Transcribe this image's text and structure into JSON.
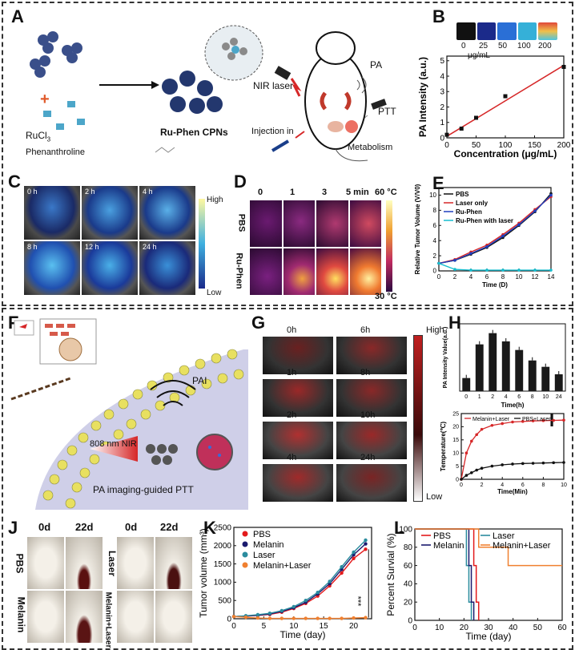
{
  "panels": {
    "a": {
      "letter": "A",
      "ru": "RuCl",
      "ru_sub": "3",
      "phen": "Phenanthroline",
      "cpn": "Ru-Phen CPNs",
      "nir": "NIR laser",
      "pa": "PA",
      "ptt": "PTT",
      "inj": "Injection in",
      "metab": "Metabolism"
    },
    "b": {
      "letter": "B",
      "conc_labels": [
        "0",
        "25",
        "50",
        "100",
        "200"
      ],
      "unit": "μg/mL"
    },
    "c": {
      "letter": "C",
      "times": [
        "0 h",
        "2 h",
        "4 h",
        "8 h",
        "12 h",
        "24 h"
      ],
      "high": "High",
      "low": "Low"
    },
    "d": {
      "letter": "D",
      "times": [
        "0",
        "1",
        "3",
        "5 min"
      ],
      "rows": [
        "PBS",
        "Ru-Phen"
      ],
      "tmax": "60 °C",
      "tmin": "30 °C"
    },
    "e": {
      "letter": "E"
    },
    "f": {
      "letter": "F",
      "pai": "PAI",
      "nir": "808 nm NIR",
      "caption": "PA imaging-guided PTT"
    },
    "g": {
      "letter": "G",
      "times": [
        "0h",
        "6h",
        "1h",
        "8h",
        "2h",
        "10h",
        "4h",
        "24h"
      ],
      "high": "High",
      "low": "Low"
    },
    "h": {
      "letter": "H"
    },
    "i": {
      "letter": "I"
    },
    "j": {
      "letter": "J",
      "days": [
        "0d",
        "22d",
        "0d",
        "22d"
      ],
      "rows_left": [
        "PBS",
        "Melanin"
      ],
      "rows_right": [
        "Laser",
        "Melanin+Laser"
      ]
    },
    "k": {
      "letter": "K",
      "stars": "***"
    },
    "l": {
      "letter": "L"
    }
  },
  "chart_data": [
    {
      "id": "B",
      "type": "scatter",
      "xlabel": "Concentration (μg/mL)",
      "ylabel": "PA Intensity (a.u.)",
      "x": [
        0,
        25,
        50,
        100,
        200
      ],
      "y": [
        0.2,
        0.6,
        1.3,
        2.7,
        4.6
      ],
      "fit": [
        [
          0,
          0.1
        ],
        [
          200,
          4.7
        ]
      ],
      "xticks": [
        0,
        50,
        100,
        150,
        200
      ],
      "yticks": [
        0,
        1,
        2,
        3,
        4,
        5
      ],
      "xlim": [
        0,
        200
      ],
      "ylim": [
        0,
        5.3
      ]
    },
    {
      "id": "E",
      "type": "line",
      "xlabel": "Time (D)",
      "ylabel": "Relative Tumor Volume (V/V0)",
      "x": [
        0,
        2,
        4,
        6,
        8,
        10,
        12,
        14
      ],
      "xticks": [
        0,
        2,
        4,
        6,
        8,
        10,
        12,
        14
      ],
      "yticks": [
        0,
        2,
        4,
        6,
        8,
        10
      ],
      "xlim": [
        0,
        14
      ],
      "ylim": [
        0,
        11
      ],
      "series": [
        {
          "name": "PBS",
          "color": "#111111",
          "values": [
            1,
            1.4,
            2.2,
            3.1,
            4.4,
            6.0,
            7.8,
            10.2
          ]
        },
        {
          "name": "Laser only",
          "color": "#d62728",
          "values": [
            1,
            1.5,
            2.5,
            3.4,
            4.8,
            6.3,
            8.1,
            9.8
          ]
        },
        {
          "name": "Ru-Phen",
          "color": "#1f3fbf",
          "values": [
            1,
            1.4,
            2.3,
            3.2,
            4.6,
            6.1,
            7.9,
            10.0
          ]
        },
        {
          "name": "Ru-Phen with laser",
          "color": "#17becf",
          "values": [
            1,
            0.2,
            0.1,
            0.1,
            0.1,
            0.1,
            0.1,
            0.1
          ]
        }
      ]
    },
    {
      "id": "H",
      "type": "bar",
      "xlabel": "Time(h)",
      "ylabel": "PA Intensity Value(a.u.)",
      "categories": [
        "0",
        "1",
        "2",
        "4",
        "6",
        "8",
        "10",
        "24"
      ],
      "values": [
        0.35,
        1.25,
        1.55,
        1.33,
        1.1,
        0.82,
        0.65,
        0.45
      ],
      "ylim": [
        0,
        1.8
      ]
    },
    {
      "id": "I",
      "type": "line",
      "xlabel": "Time(Min)",
      "ylabel": "Temperature(℃)",
      "xticks": [
        0,
        2,
        4,
        6,
        8,
        10
      ],
      "yticks": [
        0,
        5,
        10,
        15,
        20,
        25
      ],
      "xlim": [
        0,
        10
      ],
      "ylim": [
        0,
        25
      ],
      "x": [
        0,
        0.5,
        1,
        1.5,
        2,
        3,
        4,
        5,
        6,
        7,
        8,
        9,
        10
      ],
      "series": [
        {
          "name": "Melanin+Laser",
          "color": "#d62728",
          "values": [
            0,
            10,
            14.5,
            17,
            19,
            20.5,
            21.2,
            21.8,
            22.0,
            22.2,
            22.3,
            22.4,
            22.5
          ]
        },
        {
          "name": "PBS+Laser",
          "color": "#111111",
          "values": [
            0,
            1.5,
            2.5,
            3.5,
            4.2,
            5.0,
            5.5,
            5.8,
            6.0,
            6.1,
            6.2,
            6.3,
            6.4
          ]
        }
      ]
    },
    {
      "id": "K",
      "type": "line",
      "xlabel": "Time (day)",
      "ylabel": "Tumor volume (mm³)",
      "x": [
        0,
        2,
        4,
        6,
        8,
        10,
        12,
        14,
        16,
        18,
        20,
        22
      ],
      "xticks": [
        0,
        5,
        10,
        15,
        20
      ],
      "yticks": [
        0,
        500,
        1000,
        1500,
        2000,
        2500
      ],
      "xlim": [
        0,
        23
      ],
      "ylim": [
        0,
        2500
      ],
      "series": [
        {
          "name": "PBS",
          "color": "#e31a1c",
          "values": [
            60,
            70,
            90,
            120,
            180,
            280,
            420,
            620,
            900,
            1250,
            1650,
            1900
          ]
        },
        {
          "name": "Melanin",
          "color": "#1a1a6e",
          "values": [
            60,
            75,
            95,
            130,
            200,
            300,
            450,
            680,
            960,
            1350,
            1750,
            2050
          ]
        },
        {
          "name": "Laser",
          "color": "#2b8c9e",
          "values": [
            60,
            80,
            110,
            150,
            220,
            330,
            500,
            720,
            1020,
            1420,
            1820,
            2150
          ]
        },
        {
          "name": "Melanin+Laser",
          "color": "#f08030",
          "values": [
            60,
            40,
            20,
            10,
            10,
            10,
            10,
            10,
            10,
            10,
            20,
            30
          ]
        }
      ]
    },
    {
      "id": "L",
      "type": "line",
      "xlabel": "Time (day)",
      "ylabel": "Percent Survial (%)",
      "xticks": [
        0,
        10,
        20,
        30,
        40,
        50,
        60
      ],
      "yticks": [
        0,
        20,
        40,
        60,
        80,
        100
      ],
      "xlim": [
        0,
        60
      ],
      "ylim": [
        0,
        100
      ],
      "series": [
        {
          "name": "PBS",
          "color": "#e31a1c",
          "steps": [
            [
              0,
              100
            ],
            [
              24,
              100
            ],
            [
              24,
              60
            ],
            [
              25,
              60
            ],
            [
              25,
              20
            ],
            [
              26,
              20
            ],
            [
              26,
              0
            ]
          ]
        },
        {
          "name": "Laser",
          "color": "#2b8c9e",
          "steps": [
            [
              0,
              100
            ],
            [
              21,
              100
            ],
            [
              21,
              60
            ],
            [
              22,
              60
            ],
            [
              22,
              20
            ],
            [
              23,
              20
            ],
            [
              23,
              0
            ]
          ]
        },
        {
          "name": "Melanin",
          "color": "#1a1a6e",
          "steps": [
            [
              0,
              100
            ],
            [
              22,
              100
            ],
            [
              22,
              60
            ],
            [
              23,
              60
            ],
            [
              23,
              20
            ],
            [
              24,
              20
            ],
            [
              24,
              0
            ]
          ]
        },
        {
          "name": "Melanin+Laser",
          "color": "#f08030",
          "steps": [
            [
              0,
              100
            ],
            [
              26,
              100
            ],
            [
              26,
              80
            ],
            [
              38,
              80
            ],
            [
              38,
              60
            ],
            [
              60,
              60
            ]
          ]
        }
      ]
    }
  ]
}
